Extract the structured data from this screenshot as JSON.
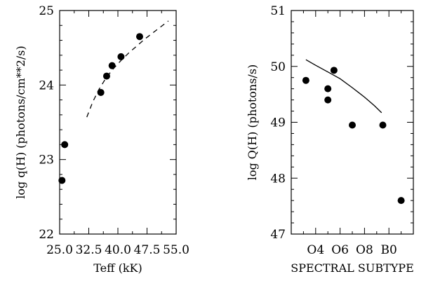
{
  "chart_data": [
    {
      "type": "scatter",
      "xlabel": "Teff (kK)",
      "ylabel": "log q(H) (photons/cm**2/s)",
      "xlim": [
        25.0,
        55.0
      ],
      "ylim": [
        22,
        25
      ],
      "xticks": [
        25.0,
        32.5,
        40.0,
        47.5,
        55.0
      ],
      "xtick_labels": [
        "25.0",
        "32.5",
        "40.0",
        "47.5",
        "55.0"
      ],
      "yticks": [
        22,
        23,
        24,
        25
      ],
      "ytick_labels": [
        "22",
        "23",
        "24",
        "25"
      ],
      "series": [
        {
          "kind": "points",
          "x": [
            25.6,
            26.3,
            35.6,
            37.1,
            38.5,
            40.8,
            45.6
          ],
          "y": [
            22.72,
            23.2,
            23.9,
            24.12,
            24.26,
            24.38,
            24.65
          ]
        },
        {
          "kind": "dashed-line",
          "x": [
            32.0,
            33.5,
            35.0,
            37.0,
            39.0,
            41.0,
            43.0,
            45.0,
            47.0,
            49.0,
            51.0,
            53.0
          ],
          "y": [
            23.57,
            23.77,
            23.93,
            24.1,
            24.23,
            24.34,
            24.44,
            24.53,
            24.62,
            24.7,
            24.78,
            24.86
          ]
        }
      ]
    },
    {
      "type": "scatter",
      "xlabel": "SPECTRAL SUBTYPE",
      "ylabel": "log Q(H) (photons/s)",
      "xlim": [
        2,
        12
      ],
      "ylim": [
        47,
        51
      ],
      "xticks": [
        4,
        6,
        8,
        10
      ],
      "xtick_labels": [
        "O4",
        "O6",
        "O8",
        "B0"
      ],
      "yticks": [
        47,
        48,
        49,
        50,
        51
      ],
      "ytick_labels": [
        "47",
        "48",
        "49",
        "50",
        "51"
      ],
      "series": [
        {
          "kind": "points",
          "x": [
            3.2,
            5.0,
            5.0,
            5.5,
            7.0,
            9.5,
            11.0
          ],
          "y": [
            49.75,
            49.6,
            49.4,
            49.93,
            48.95,
            48.95,
            47.6
          ]
        },
        {
          "kind": "solid-line",
          "x": [
            3.2,
            4.0,
            5.0,
            6.0,
            7.0,
            8.0,
            8.8,
            9.4
          ],
          "y": [
            50.12,
            50.02,
            49.9,
            49.78,
            49.62,
            49.45,
            49.3,
            49.17
          ]
        }
      ]
    }
  ]
}
